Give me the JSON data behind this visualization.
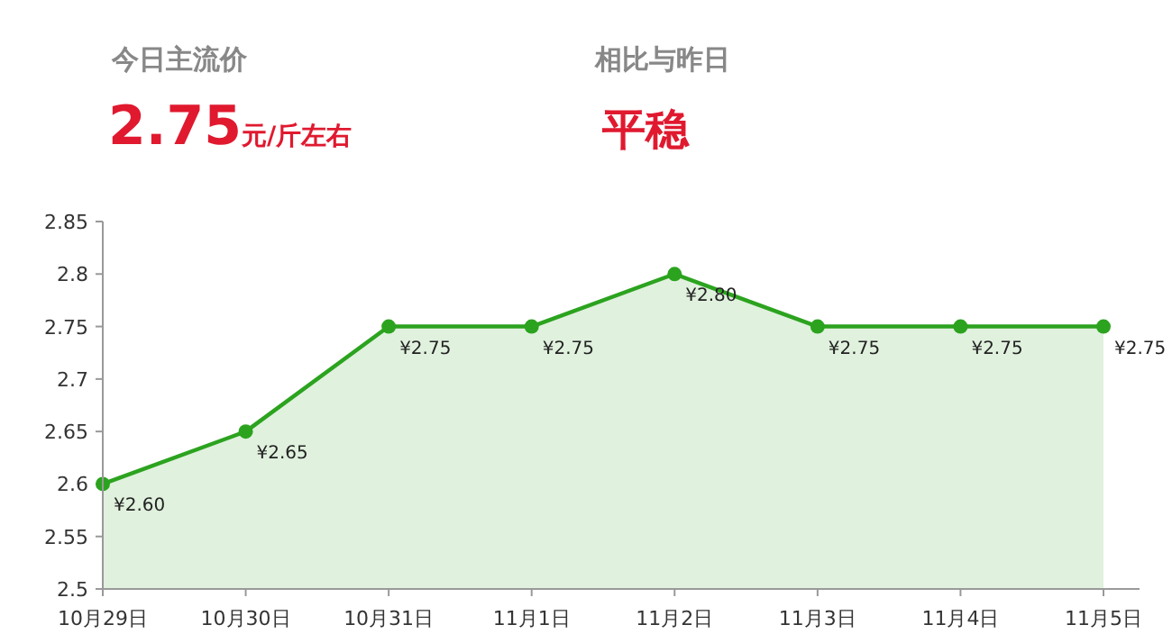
{
  "chart_data": {
    "type": "area",
    "categories": [
      "10月29日",
      "10月30日",
      "10月31日",
      "11月1日",
      "11月2日",
      "11月3日",
      "11月4日",
      "11月5日"
    ],
    "series": [
      {
        "color": "#2ca31f",
        "values": [
          2.6,
          2.65,
          2.75,
          2.75,
          2.8,
          2.75,
          2.75,
          2.75
        ],
        "value_labels": [
          "¥2.60",
          "¥2.65",
          "¥2.75",
          "¥2.75",
          "¥2.80",
          "¥2.75",
          "¥2.75",
          "¥2.75"
        ]
      }
    ],
    "ylim": [
      2.5,
      2.85
    ],
    "yticks": [
      2.5,
      2.55,
      2.6,
      2.65,
      2.7,
      2.75,
      2.8,
      2.85
    ],
    "marker": "circle",
    "grid": false,
    "annotations": [
      "今日主流价",
      "2.75",
      "元/斤左右",
      "相比与昨日",
      "平稳"
    ]
  }
}
